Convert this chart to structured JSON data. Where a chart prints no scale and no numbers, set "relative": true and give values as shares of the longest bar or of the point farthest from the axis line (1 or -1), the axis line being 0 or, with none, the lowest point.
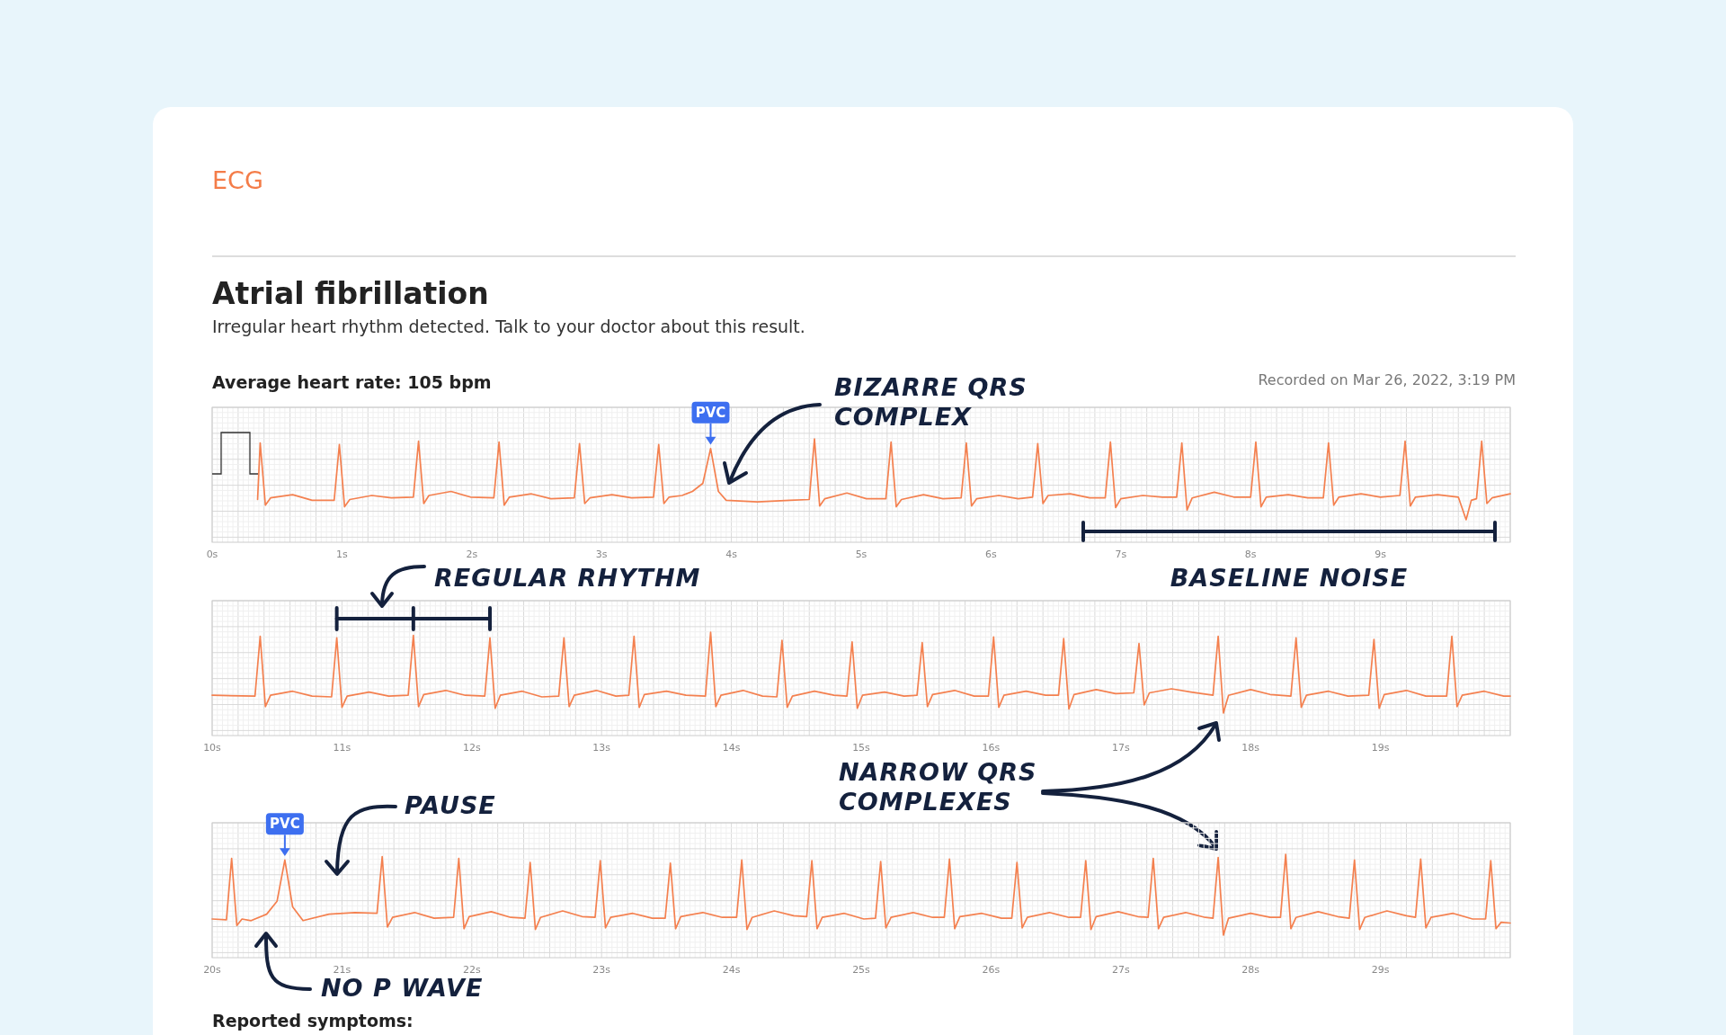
{
  "chart_data": [
    {
      "type": "line",
      "title": "ECG",
      "subtitle": "Atrial fibrillation",
      "relative": true,
      "grid": true,
      "xlim": [
        0,
        10
      ],
      "xticks": [
        {
          "value": 0,
          "label": "0s"
        },
        {
          "value": 1,
          "label": "1s"
        },
        {
          "value": 2,
          "label": "2s"
        },
        {
          "value": 3,
          "label": "3s"
        },
        {
          "value": 4,
          "label": "4s"
        },
        {
          "value": 5,
          "label": "5s"
        },
        {
          "value": 6,
          "label": "6s"
        },
        {
          "value": 7,
          "label": "7s"
        },
        {
          "value": 8,
          "label": "8s"
        },
        {
          "value": 9,
          "label": "9s"
        }
      ],
      "annotations": [
        "Irregular heart rhythm detected. Talk to your doctor about this result.",
        "Average heart rate: 105 bpm",
        "Recorded on Mar 26, 2022, 3:19 PM",
        {
          "text": "PVC",
          "x": 3.84,
          "y": 0.88
        },
        "BIZARRE QRS COMPLEX",
        "BASELINE NOISE"
      ],
      "series": [
        {
          "color": "#f4804f",
          "x": [
            0.35,
            0.37,
            0.41,
            0.45,
            0.62,
            0.77,
            0.94,
            0.98,
            1.02,
            1.06,
            1.23,
            1.38,
            1.55,
            1.59,
            1.63,
            1.67,
            1.84,
            1.99,
            2.17,
            2.21,
            2.25,
            2.29,
            2.46,
            2.61,
            2.79,
            2.83,
            2.87,
            2.91,
            3.08,
            3.23,
            3.4,
            3.44,
            3.48,
            3.52,
            3.62,
            3.7,
            3.78,
            3.84,
            3.9,
            3.96,
            4.2,
            4.45,
            4.6,
            4.64,
            4.68,
            4.72,
            4.89,
            5.04,
            5.19,
            5.23,
            5.27,
            5.31,
            5.48,
            5.63,
            5.77,
            5.81,
            5.85,
            5.89,
            6.06,
            6.21,
            6.32,
            6.36,
            6.4,
            6.44,
            6.61,
            6.76,
            6.88,
            6.92,
            6.96,
            7.0,
            7.17,
            7.32,
            7.43,
            7.47,
            7.51,
            7.55,
            7.72,
            7.87,
            8.0,
            8.04,
            8.08,
            8.12,
            8.29,
            8.44,
            8.56,
            8.6,
            8.64,
            8.68,
            8.85,
            9.0,
            9.15,
            9.19,
            9.23,
            9.27,
            9.44,
            9.6,
            9.66,
            9.7,
            9.74,
            9.78,
            9.82,
            9.86,
            10.0
          ],
          "values": [
            0.25,
            0.95,
            0.18,
            0.27,
            0.31,
            0.24,
            0.24,
            0.93,
            0.16,
            0.25,
            0.3,
            0.27,
            0.28,
            0.97,
            0.2,
            0.3,
            0.35,
            0.28,
            0.27,
            0.96,
            0.18,
            0.28,
            0.32,
            0.26,
            0.27,
            0.94,
            0.2,
            0.27,
            0.31,
            0.27,
            0.28,
            0.93,
            0.2,
            0.28,
            0.3,
            0.35,
            0.45,
            0.88,
            0.35,
            0.24,
            0.22,
            0.24,
            0.25,
            1,
            0.17,
            0.26,
            0.33,
            0.26,
            0.26,
            0.96,
            0.16,
            0.25,
            0.31,
            0.26,
            0.27,
            0.95,
            0.17,
            0.26,
            0.3,
            0.26,
            0.28,
            0.94,
            0.2,
            0.3,
            0.32,
            0.27,
            0.27,
            0.96,
            0.15,
            0.26,
            0.3,
            0.28,
            0.28,
            0.95,
            0.12,
            0.27,
            0.34,
            0.28,
            0.28,
            0.96,
            0.16,
            0.28,
            0.31,
            0.27,
            0.27,
            0.95,
            0.18,
            0.28,
            0.32,
            0.28,
            0.3,
            0.97,
            0.17,
            0.28,
            0.31,
            0.28,
            0.0,
            0.24,
            0.26,
            0.97,
            0.2,
            0.27,
            0.32
          ]
        }
      ]
    },
    {
      "type": "line",
      "relative": true,
      "grid": true,
      "xlim": [
        10,
        20
      ],
      "xticks": [
        {
          "value": 10,
          "label": "10s"
        },
        {
          "value": 11,
          "label": "11s"
        },
        {
          "value": 12,
          "label": "12s"
        },
        {
          "value": 13,
          "label": "13s"
        },
        {
          "value": 14,
          "label": "14s"
        },
        {
          "value": 15,
          "label": "15s"
        },
        {
          "value": 16,
          "label": "16s"
        },
        {
          "value": 17,
          "label": "17s"
        },
        {
          "value": 18,
          "label": "18s"
        },
        {
          "value": 19,
          "label": "19s"
        }
      ],
      "annotations": [
        "REGULAR RHYTHM",
        "NARROW QRS COMPLEXES"
      ],
      "series": [
        {
          "color": "#f4804f",
          "x": [
            10.0,
            10.33,
            10.37,
            10.41,
            10.45,
            10.62,
            10.77,
            10.92,
            10.96,
            11.0,
            11.04,
            11.21,
            11.36,
            11.51,
            11.55,
            11.59,
            11.63,
            11.8,
            11.95,
            12.1,
            12.14,
            12.18,
            12.22,
            12.39,
            12.54,
            12.67,
            12.71,
            12.75,
            12.79,
            12.96,
            13.11,
            13.21,
            13.25,
            13.29,
            13.33,
            13.5,
            13.65,
            13.8,
            13.84,
            13.88,
            13.92,
            14.09,
            14.24,
            14.35,
            14.39,
            14.43,
            14.47,
            14.64,
            14.79,
            14.89,
            14.93,
            14.97,
            15.01,
            15.18,
            15.33,
            15.43,
            15.47,
            15.51,
            15.55,
            15.72,
            15.87,
            15.98,
            16.02,
            16.06,
            16.1,
            16.27,
            16.42,
            16.52,
            16.56,
            16.6,
            16.64,
            16.81,
            16.96,
            17.1,
            17.14,
            17.18,
            17.22,
            17.39,
            17.54,
            17.71,
            17.75,
            17.79,
            17.83,
            18.0,
            18.15,
            18.31,
            18.35,
            18.39,
            18.43,
            18.6,
            18.75,
            18.91,
            18.95,
            18.99,
            19.03,
            19.2,
            19.35,
            19.51,
            19.55,
            19.59,
            19.63,
            19.8,
            19.95,
            20.0
          ],
          "values": [
            0.22,
            0.21,
            0.95,
            0.08,
            0.22,
            0.27,
            0.21,
            0.2,
            0.93,
            0.07,
            0.21,
            0.26,
            0.21,
            0.22,
            0.96,
            0.08,
            0.23,
            0.28,
            0.22,
            0.21,
            0.93,
            0.06,
            0.22,
            0.27,
            0.2,
            0.21,
            0.93,
            0.08,
            0.22,
            0.28,
            0.21,
            0.22,
            0.95,
            0.07,
            0.23,
            0.27,
            0.22,
            0.21,
            1,
            0.08,
            0.22,
            0.28,
            0.21,
            0.2,
            0.9,
            0.07,
            0.21,
            0.27,
            0.22,
            0.21,
            0.88,
            0.06,
            0.22,
            0.26,
            0.21,
            0.22,
            0.87,
            0.08,
            0.23,
            0.28,
            0.21,
            0.21,
            0.94,
            0.07,
            0.22,
            0.27,
            0.22,
            0.22,
            0.92,
            0.05,
            0.23,
            0.29,
            0.24,
            0.25,
            0.86,
            0.1,
            0.25,
            0.3,
            0.26,
            0.22,
            0.95,
            0.0,
            0.22,
            0.29,
            0.23,
            0.21,
            0.93,
            0.07,
            0.22,
            0.27,
            0.21,
            0.22,
            0.91,
            0.06,
            0.23,
            0.28,
            0.21,
            0.21,
            0.95,
            0.08,
            0.22,
            0.27,
            0.21,
            0.21
          ]
        }
      ]
    },
    {
      "type": "line",
      "relative": true,
      "grid": true,
      "xlim": [
        20,
        30
      ],
      "xticks": [
        {
          "value": 20,
          "label": "20s"
        },
        {
          "value": 21,
          "label": "21s"
        },
        {
          "value": 22,
          "label": "22s"
        },
        {
          "value": 23,
          "label": "23s"
        },
        {
          "value": 24,
          "label": "24s"
        },
        {
          "value": 25,
          "label": "25s"
        },
        {
          "value": 26,
          "label": "26s"
        },
        {
          "value": 27,
          "label": "27s"
        },
        {
          "value": 28,
          "label": "28s"
        },
        {
          "value": 29,
          "label": "29s"
        }
      ],
      "annotations": [
        {
          "text": "PVC",
          "x": 20.56,
          "y": 0.93
        },
        "PAUSE",
        "NO P WAVE",
        "Reported symptoms:"
      ],
      "series": [
        {
          "color": "#f4804f",
          "x": [
            20.0,
            20.11,
            20.15,
            20.19,
            20.23,
            20.3,
            20.42,
            20.5,
            20.56,
            20.62,
            20.7,
            20.9,
            21.1,
            21.27,
            21.31,
            21.35,
            21.39,
            21.56,
            21.71,
            21.86,
            21.9,
            21.94,
            21.98,
            22.15,
            22.3,
            22.41,
            22.45,
            22.49,
            22.53,
            22.7,
            22.85,
            22.95,
            22.99,
            23.03,
            23.07,
            23.24,
            23.39,
            23.49,
            23.53,
            23.57,
            23.61,
            23.78,
            23.93,
            24.04,
            24.08,
            24.12,
            24.16,
            24.33,
            24.48,
            24.58,
            24.62,
            24.66,
            24.7,
            24.87,
            25.02,
            25.11,
            25.15,
            25.19,
            25.23,
            25.4,
            25.55,
            25.64,
            25.68,
            25.72,
            25.76,
            25.93,
            26.08,
            26.16,
            26.2,
            26.24,
            26.28,
            26.45,
            26.6,
            26.69,
            26.73,
            26.77,
            26.81,
            26.98,
            27.13,
            27.21,
            27.25,
            27.29,
            27.33,
            27.5,
            27.65,
            27.71,
            27.75,
            27.79,
            27.83,
            28.0,
            28.15,
            28.23,
            28.27,
            28.31,
            28.35,
            28.52,
            28.67,
            28.76,
            28.8,
            28.84,
            28.88,
            29.05,
            29.2,
            29.27,
            29.31,
            29.35,
            29.39,
            29.56,
            29.71,
            29.81,
            29.85,
            29.89,
            29.93,
            30.0
          ],
          "values": [
            0.2,
            0.19,
            0.95,
            0.12,
            0.2,
            0.18,
            0.26,
            0.42,
            0.93,
            0.35,
            0.18,
            0.26,
            0.28,
            0.27,
            0.97,
            0.1,
            0.22,
            0.28,
            0.21,
            0.22,
            0.95,
            0.08,
            0.23,
            0.29,
            0.22,
            0.21,
            0.9,
            0.07,
            0.22,
            0.3,
            0.23,
            0.22,
            0.92,
            0.09,
            0.22,
            0.27,
            0.21,
            0.21,
            0.89,
            0.08,
            0.23,
            0.28,
            0.22,
            0.22,
            0.93,
            0.07,
            0.22,
            0.3,
            0.24,
            0.23,
            0.92,
            0.08,
            0.22,
            0.27,
            0.2,
            0.21,
            0.91,
            0.09,
            0.22,
            0.28,
            0.22,
            0.22,
            0.94,
            0.08,
            0.23,
            0.27,
            0.21,
            0.21,
            0.9,
            0.09,
            0.22,
            0.28,
            0.22,
            0.22,
            0.92,
            0.07,
            0.23,
            0.29,
            0.23,
            0.22,
            0.95,
            0.08,
            0.22,
            0.28,
            0.22,
            0.21,
            0.96,
            0.0,
            0.21,
            0.27,
            0.22,
            0.22,
            1,
            0.08,
            0.22,
            0.29,
            0.23,
            0.21,
            0.93,
            0.07,
            0.22,
            0.3,
            0.24,
            0.22,
            0.94,
            0.09,
            0.22,
            0.27,
            0.2,
            0.2,
            0.92,
            0.08,
            0.16,
            0.15
          ]
        }
      ]
    }
  ]
}
